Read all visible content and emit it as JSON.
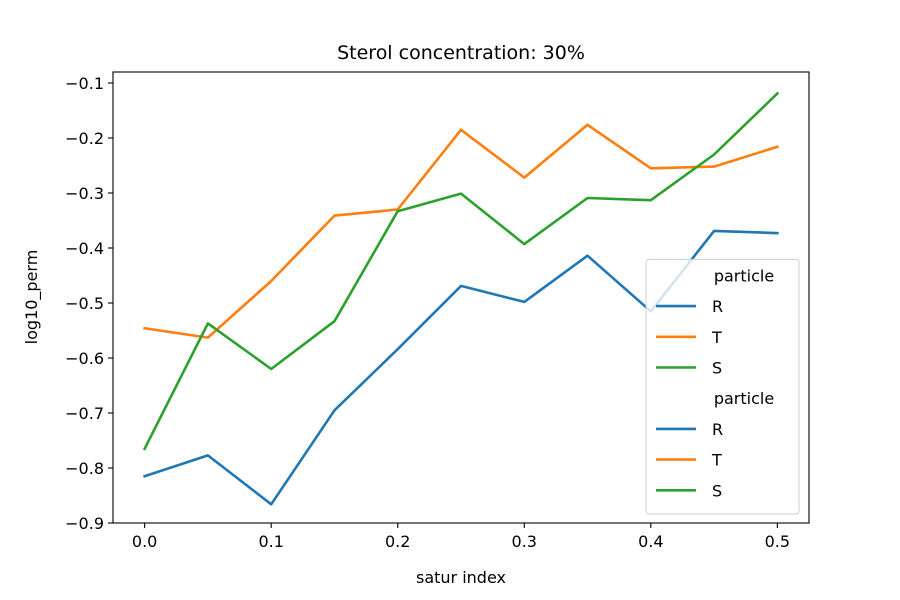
{
  "chart_data": {
    "type": "line",
    "title": "Sterol concentration: 30%",
    "xlabel": "satur index",
    "ylabel": "log10_perm",
    "xlim": [
      -0.025,
      0.525
    ],
    "ylim": [
      -0.9,
      -0.08
    ],
    "xticks": [
      0.0,
      0.1,
      0.2,
      0.3,
      0.4,
      0.5
    ],
    "xtick_labels": [
      "0.0",
      "0.1",
      "0.2",
      "0.3",
      "0.4",
      "0.5"
    ],
    "yticks": [
      -0.9,
      -0.8,
      -0.7,
      -0.6,
      -0.5,
      -0.4,
      -0.3,
      -0.2,
      -0.1
    ],
    "ytick_labels": [
      "−0.9",
      "−0.8",
      "−0.7",
      "−0.6",
      "−0.5",
      "−0.4",
      "−0.3",
      "−0.2",
      "−0.1"
    ],
    "grid": false,
    "x": [
      0.0,
      0.05,
      0.1,
      0.15,
      0.2,
      0.25,
      0.3,
      0.35,
      0.4,
      0.45,
      0.5
    ],
    "series": [
      {
        "name": "R",
        "color": "#1f77b4",
        "values": [
          -0.815,
          -0.777,
          -0.866,
          -0.695,
          -0.584,
          -0.469,
          -0.498,
          -0.414,
          -0.515,
          -0.369,
          -0.373
        ]
      },
      {
        "name": "T",
        "color": "#ff7f0e",
        "values": [
          -0.546,
          -0.563,
          -0.46,
          -0.341,
          -0.33,
          -0.185,
          -0.272,
          -0.176,
          -0.255,
          -0.252,
          -0.216
        ]
      },
      {
        "name": "S",
        "color": "#2ca02c",
        "values": [
          -0.765,
          -0.537,
          -0.62,
          -0.533,
          -0.333,
          -0.301,
          -0.393,
          -0.309,
          -0.313,
          -0.23,
          -0.119
        ]
      }
    ],
    "legend": {
      "placement": "lower-right",
      "groups": [
        {
          "title": "particle",
          "entries": [
            {
              "label": "R",
              "color": "#1f77b4"
            },
            {
              "label": "T",
              "color": "#ff7f0e"
            },
            {
              "label": "S",
              "color": "#2ca02c"
            }
          ]
        },
        {
          "title": "particle",
          "entries": [
            {
              "label": "R",
              "color": "#1f77b4"
            },
            {
              "label": "T",
              "color": "#ff7f0e"
            },
            {
              "label": "S",
              "color": "#2ca02c"
            }
          ]
        }
      ]
    }
  }
}
